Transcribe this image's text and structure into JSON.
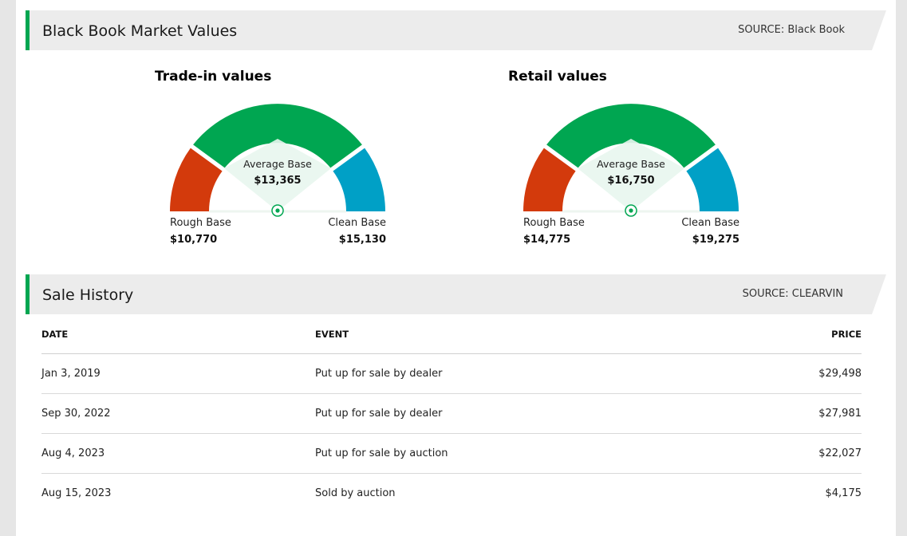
{
  "market_values": {
    "title": "Black Book Market Values",
    "source": "SOURCE: Black Book",
    "trade_in": {
      "title": "Trade-in values",
      "rough_label": "Rough Base",
      "rough_value": "$10,770",
      "average_label": "Average Base",
      "average_value": "$13,365",
      "clean_label": "Clean Base",
      "clean_value": "$15,130"
    },
    "retail": {
      "title": "Retail values",
      "rough_label": "Rough Base",
      "rough_value": "$14,775",
      "average_label": "Average Base",
      "average_value": "$16,750",
      "clean_label": "Clean Base",
      "clean_value": "$19,275"
    }
  },
  "sale_history": {
    "title": "Sale History",
    "source": "SOURCE: CLEARVIN",
    "columns": [
      "DATE",
      "EVENT",
      "PRICE"
    ],
    "rows": [
      {
        "date": "Jan 3, 2019",
        "event": "Put up for sale by dealer",
        "price": "$29,498"
      },
      {
        "date": "Sep 30, 2022",
        "event": "Put up for sale by dealer",
        "price": "$27,981"
      },
      {
        "date": "Aug 4, 2023",
        "event": "Put up for sale by auction",
        "price": "$22,027"
      },
      {
        "date": "Aug 15, 2023",
        "event": "Sold by auction",
        "price": "$4,175"
      }
    ]
  },
  "colors": {
    "accent_green": "#00a651",
    "rough_red": "#d33a0c",
    "clean_blue": "#00a0c6",
    "header_bg": "#ececec"
  }
}
